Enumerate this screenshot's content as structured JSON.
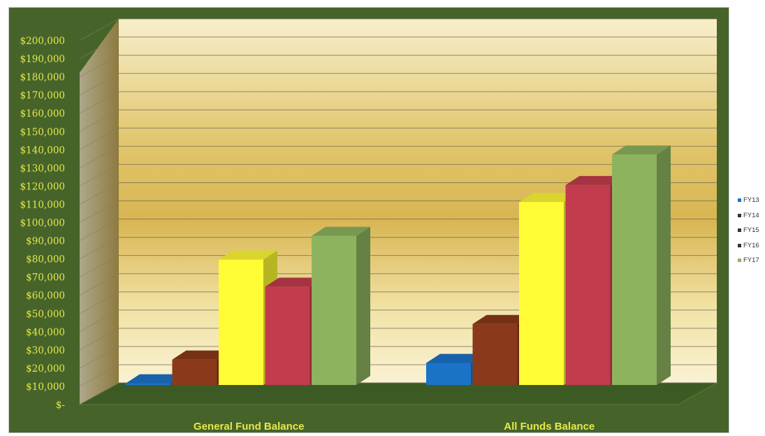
{
  "chart_data": {
    "type": "bar",
    "categories": [
      "General Fund Balance",
      "All Funds Balance"
    ],
    "series": [
      {
        "name": "FY13",
        "values": [
          1000,
          13000
        ],
        "color": "#1b73c8"
      },
      {
        "name": "FY14",
        "values": [
          15000,
          36000
        ],
        "color": "#8a3a1a"
      },
      {
        "name": "FY15",
        "values": [
          74000,
          108000
        ],
        "color": "#fffb34"
      },
      {
        "name": "FY16",
        "values": [
          58000,
          118000
        ],
        "color": "#c23c4e"
      },
      {
        "name": "FY17",
        "values": [
          88000,
          136000
        ],
        "color": "#8db35f"
      }
    ],
    "y_ticks": [
      "$200,000",
      "$190,000",
      "$180,000",
      "$170,000",
      "$160,000",
      "$150,000",
      "$140,000",
      "$130,000",
      "$120,000",
      "$110,000",
      "$100,000",
      "$90,000",
      "$80,000",
      "$70,000",
      "$60,000",
      "$50,000",
      "$40,000",
      "$30,000",
      "$20,000",
      "$10,000",
      "$-"
    ],
    "ylim": [
      0,
      200000
    ],
    "grid": true,
    "legend_position": "right",
    "three_d": true
  }
}
